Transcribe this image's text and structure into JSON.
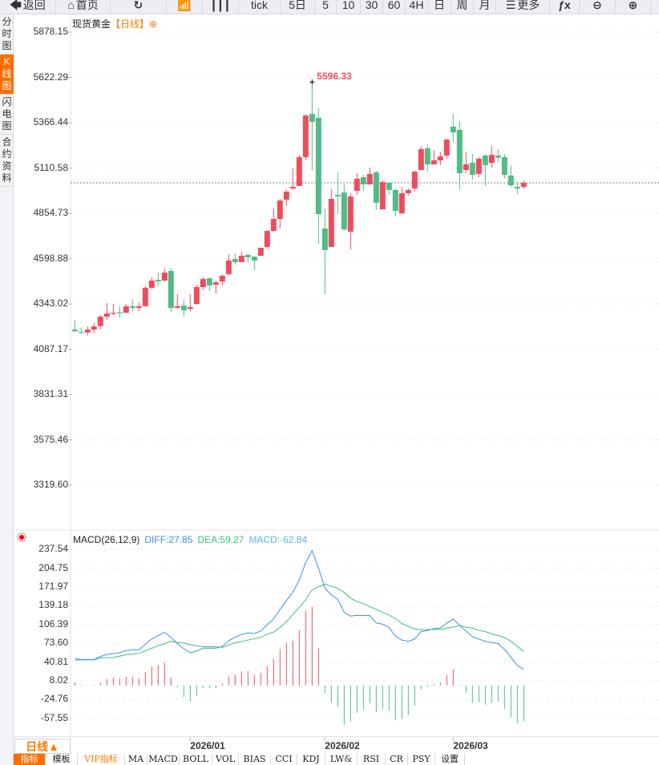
{
  "toolbar": {
    "items": [
      {
        "label": "返回",
        "icon": "back-arrow-icon"
      },
      {
        "label": "首页",
        "icon": "home-icon"
      },
      {
        "label": "",
        "icon": "refresh-icon"
      },
      {
        "label": "",
        "icon": "bar-chart-icon"
      },
      {
        "label": "",
        "icon": "candlestick-icon"
      },
      {
        "label": "tick"
      },
      {
        "label": "5日"
      },
      {
        "label": "5"
      },
      {
        "label": "10"
      },
      {
        "label": "30"
      },
      {
        "label": "60"
      },
      {
        "label": "4H"
      },
      {
        "label": "日"
      },
      {
        "label": "周"
      },
      {
        "label": "月"
      },
      {
        "label": "更多",
        "icon": "menu-icon"
      },
      {
        "label": "",
        "icon": "fx-icon"
      },
      {
        "label": "",
        "icon": "zoom-out-icon"
      },
      {
        "label": "",
        "icon": "zoom-in-icon"
      }
    ]
  },
  "left_tabs": [
    {
      "label": "分时图"
    },
    {
      "label": "K线图",
      "active": true
    },
    {
      "label": "闪电图"
    },
    {
      "label": "合约资料"
    }
  ],
  "title": {
    "instrument": "现货黄金",
    "period": "【日线】",
    "icon": "circle-plus-icon"
  },
  "colors": {
    "up": "#ee4c5c",
    "down": "#52bb88",
    "accent": "#ff6d00",
    "diff": "#3a8ff0",
    "dea": "#3cbf7d",
    "macd_label": "#58b4e8"
  },
  "price_axis": [
    "5878.15",
    "5622.29",
    "5366.44",
    "5110.58",
    "4854.73",
    "4598.88",
    "4343.02",
    "4087.17",
    "3831.31",
    "3575.46",
    "3319.60"
  ],
  "macd_axis": [
    "237.54",
    "204.75",
    "171.97",
    "139.18",
    "106.39",
    "73.60",
    "40.81",
    "8.02",
    "-24.76",
    "-57.55"
  ],
  "macd_header": {
    "name": "MACD(26,12,9)",
    "diff": "DIFF:27.85",
    "dea": "DEA:59.27",
    "macd": "MACD:-62.84"
  },
  "high_label": "5596.33",
  "period_button": "日线▲",
  "date_labels": [
    {
      "index": 18,
      "label": "2026/01"
    },
    {
      "index": 39,
      "label": "2026/02"
    },
    {
      "index": 59,
      "label": "2026/03"
    }
  ],
  "bottom_tabs": [
    {
      "label": "指标",
      "active": true
    },
    {
      "label": "模板"
    },
    {
      "label": "VIP指标",
      "vip": true
    },
    {
      "label": "MA"
    },
    {
      "label": "MACD"
    },
    {
      "label": "BOLL"
    },
    {
      "label": "VOL"
    },
    {
      "label": "BIAS"
    },
    {
      "label": "CCI"
    },
    {
      "label": "KDJ"
    },
    {
      "label": "LW&"
    },
    {
      "label": "RSI"
    },
    {
      "label": "CR"
    },
    {
      "label": "PSY"
    },
    {
      "label": "设置"
    }
  ],
  "chart_data": {
    "type": "candlestick",
    "ylim": [
      3319.6,
      5878.15
    ],
    "last_price": 5027,
    "ohlc": [
      [
        4198,
        4253,
        4188,
        4188
      ],
      [
        4186,
        4210,
        4173,
        4182
      ],
      [
        4182,
        4215,
        4164,
        4198
      ],
      [
        4198,
        4234,
        4177,
        4216
      ],
      [
        4218,
        4280,
        4200,
        4271
      ],
      [
        4271,
        4348,
        4253,
        4289
      ],
      [
        4287,
        4343,
        4280,
        4293
      ],
      [
        4296,
        4330,
        4268,
        4293
      ],
      [
        4293,
        4343,
        4293,
        4330
      ],
      [
        4330,
        4370,
        4302,
        4321
      ],
      [
        4321,
        4352,
        4302,
        4330
      ],
      [
        4330,
        4443,
        4330,
        4434
      ],
      [
        4434,
        4493,
        4425,
        4475
      ],
      [
        4479,
        4520,
        4443,
        4470
      ],
      [
        4475,
        4543,
        4470,
        4520
      ],
      [
        4529,
        4543,
        4298,
        4321
      ],
      [
        4321,
        4398,
        4316,
        4330
      ],
      [
        4334,
        4366,
        4271,
        4307
      ],
      [
        4316,
        4398,
        4302,
        4325
      ],
      [
        4343,
        4452,
        4339,
        4438
      ],
      [
        4438,
        4493,
        4420,
        4484
      ],
      [
        4488,
        4493,
        4416,
        4447
      ],
      [
        4452,
        4474,
        4402,
        4465
      ],
      [
        4470,
        4511,
        4447,
        4502
      ],
      [
        4511,
        4624,
        4506,
        4588
      ],
      [
        4597,
        4628,
        4565,
        4579
      ],
      [
        4579,
        4638,
        4579,
        4615
      ],
      [
        4620,
        4628,
        4574,
        4606
      ],
      [
        4610,
        4615,
        4533,
        4588
      ],
      [
        4615,
        4660,
        4615,
        4660
      ],
      [
        4665,
        4760,
        4656,
        4755
      ],
      [
        4755,
        4882,
        4751,
        4823
      ],
      [
        4823,
        4936,
        4769,
        4927
      ],
      [
        4932,
        4986,
        4896,
        4977
      ],
      [
        4995,
        5108,
        4986,
        5004
      ],
      [
        5009,
        5185,
        5009,
        5172
      ],
      [
        5172,
        5416,
        5154,
        5407
      ],
      [
        5416,
        5596.33,
        5099,
        5371
      ],
      [
        5394,
        5448,
        4683,
        4850
      ],
      [
        4769,
        4882,
        4398,
        4647
      ],
      [
        4665,
        4991,
        4665,
        4936
      ],
      [
        4959,
        5086,
        4850,
        4950
      ],
      [
        4972,
        5018,
        4755,
        4764
      ],
      [
        4751,
        4968,
        4651,
        4950
      ],
      [
        4982,
        5081,
        4959,
        5050
      ],
      [
        5059,
        5072,
        4982,
        5018
      ],
      [
        5018,
        5113,
        5018,
        5077
      ],
      [
        5086,
        5095,
        4873,
        4914
      ],
      [
        4877,
        5040,
        4877,
        5031
      ],
      [
        5027,
        5031,
        4959,
        4986
      ],
      [
        4986,
        4995,
        4837,
        4868
      ],
      [
        4855,
        5004,
        4850,
        4968
      ],
      [
        4968,
        4995,
        4954,
        4986
      ],
      [
        4995,
        5095,
        4977,
        5090
      ],
      [
        5099,
        5235,
        5099,
        5217
      ],
      [
        5222,
        5244,
        5090,
        5131
      ],
      [
        5131,
        5212,
        5131,
        5154
      ],
      [
        5154,
        5203,
        5127,
        5176
      ],
      [
        5181,
        5276,
        5163,
        5271
      ],
      [
        5344,
        5416,
        5258,
        5312
      ],
      [
        5326,
        5376,
        4991,
        5081
      ],
      [
        5099,
        5203,
        5081,
        5131
      ],
      [
        5140,
        5190,
        5045,
        5072
      ],
      [
        5077,
        5172,
        5059,
        5163
      ],
      [
        5181,
        5190,
        5009,
        5127
      ],
      [
        5140,
        5235,
        5113,
        5185
      ],
      [
        5181,
        5217,
        5145,
        5169
      ],
      [
        5172,
        5190,
        5050,
        5072
      ],
      [
        5068,
        5127,
        5004,
        5013
      ],
      [
        5004,
        5031,
        4963,
        4995
      ],
      [
        5004,
        5040,
        4991,
        5027
      ]
    ],
    "macd": {
      "ylim": [
        -57.55,
        237.54
      ],
      "diff": [
        46.8,
        45,
        45,
        45,
        50.5,
        54,
        55.6,
        57,
        61,
        62,
        62,
        72,
        81,
        87,
        93,
        84,
        73,
        64,
        57,
        60,
        65,
        65,
        65,
        68,
        78,
        84,
        89,
        91.6,
        90.7,
        95,
        106,
        116,
        133,
        148,
        163,
        184,
        214.5,
        235.4,
        205,
        170,
        158,
        150.4,
        128,
        121,
        122.4,
        122,
        122,
        109,
        107,
        101,
        86,
        79,
        77,
        81,
        94,
        96,
        99,
        100,
        109,
        116,
        105,
        95,
        85,
        81,
        77,
        75,
        73,
        63,
        49,
        35,
        27.85
      ],
      "dea": [
        44.2,
        44.5,
        44.8,
        44.8,
        48,
        48.5,
        48.8,
        51,
        53.5,
        54.5,
        56,
        60.5,
        64.5,
        69.5,
        73,
        77.2,
        74.5,
        74,
        71,
        69,
        67.5,
        67.5,
        67.5,
        66.5,
        70.5,
        74.5,
        76.5,
        79.1,
        81.7,
        84,
        89.5,
        93,
        101.5,
        111,
        124,
        136,
        149.5,
        166.9,
        172.5,
        177,
        173,
        169.4,
        162.5,
        152.5,
        146.4,
        143,
        137.5,
        132.5,
        127.5,
        123,
        116.5,
        108,
        103,
        98.5,
        97.5,
        97.5,
        97.8,
        97.5,
        100,
        102,
        104.5,
        101.5,
        100,
        96,
        94,
        90,
        87,
        83.5,
        77,
        68,
        59.27
      ],
      "hist": [
        5.2,
        1,
        0.5,
        0.5,
        5,
        11,
        13.6,
        12,
        15,
        15,
        12,
        23,
        33,
        35,
        40,
        13.6,
        -3,
        -20,
        -28,
        -18,
        -5,
        -5,
        -5,
        3,
        15,
        19,
        25,
        25,
        18,
        22,
        33,
        46,
        63,
        74,
        78,
        96,
        130,
        137,
        65,
        -14,
        -30,
        -38,
        -69,
        -63,
        -48,
        -42,
        -31,
        -47,
        -41,
        -44,
        -61,
        -58,
        -52,
        -35,
        -7,
        -3,
        2.4,
        5,
        18,
        28,
        1,
        -13,
        -30,
        -30,
        -34,
        -30,
        -28,
        -41,
        -56,
        -66,
        -62.84
      ]
    }
  }
}
